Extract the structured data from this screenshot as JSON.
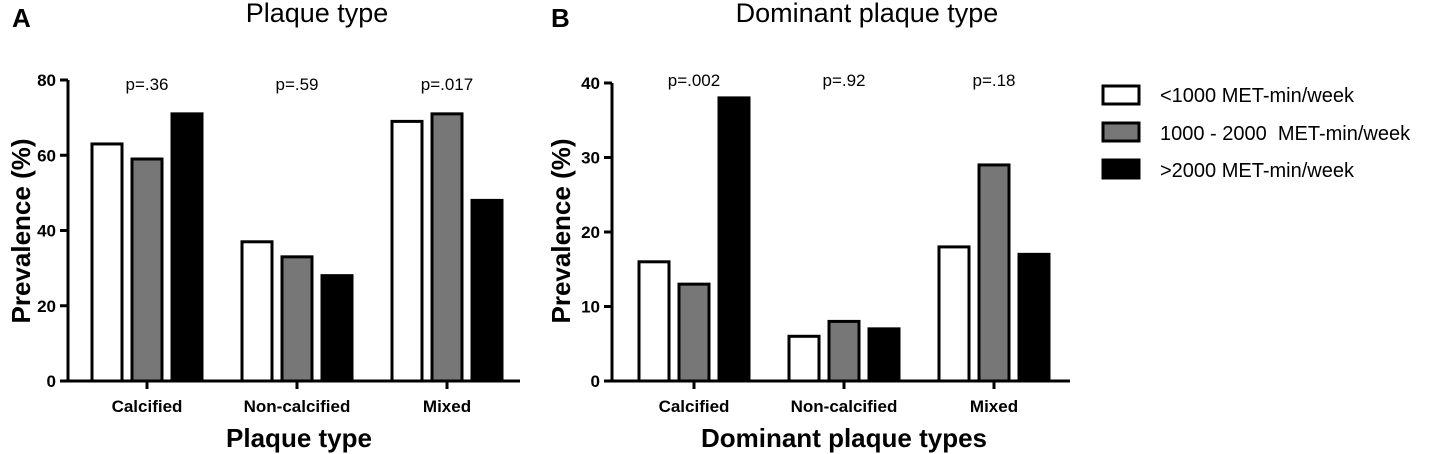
{
  "colors": {
    "series": [
      "#ffffff",
      "#777777",
      "#000000"
    ],
    "stroke": "#000000"
  },
  "legend": {
    "entries": [
      "<1000 MET-min/week",
      "1000 - 2000  MET-min/week",
      ">2000 MET-min/week"
    ]
  },
  "chart_data": [
    {
      "type": "bar",
      "panel": "A",
      "title": "Plaque type",
      "xlabel": "Plaque type",
      "ylabel": "Prevalence (%)",
      "ylim": [
        0,
        80
      ],
      "yticks": [
        0,
        20,
        40,
        60,
        80
      ],
      "categories": [
        "Calcified",
        "Non-calcified",
        "Mixed"
      ],
      "annotations": [
        "p=.36",
        "p=.59",
        "p=.017"
      ],
      "grid": false,
      "legend_position": "right",
      "series": [
        {
          "name": "<1000 MET-min/week",
          "values": [
            63,
            37,
            69
          ]
        },
        {
          "name": "1000 - 2000  MET-min/week",
          "values": [
            59,
            33,
            71
          ]
        },
        {
          "name": ">2000 MET-min/week",
          "values": [
            71,
            28,
            48
          ]
        }
      ]
    },
    {
      "type": "bar",
      "panel": "B",
      "title": "Dominant plaque type",
      "xlabel": "Dominant plaque types",
      "ylabel": "Prevalence (%)",
      "ylim": [
        0,
        40
      ],
      "yticks": [
        0,
        10,
        20,
        30,
        40
      ],
      "categories": [
        "Calcified",
        "Non-calcified",
        "Mixed"
      ],
      "annotations": [
        "p=.002",
        "p=.92",
        "p=.18"
      ],
      "grid": false,
      "legend_position": "right",
      "series": [
        {
          "name": "<1000 MET-min/week",
          "values": [
            16,
            6,
            18
          ]
        },
        {
          "name": "1000 - 2000  MET-min/week",
          "values": [
            13,
            8,
            29
          ]
        },
        {
          "name": ">2000 MET-min/week",
          "values": [
            38,
            7,
            17
          ]
        }
      ]
    }
  ]
}
